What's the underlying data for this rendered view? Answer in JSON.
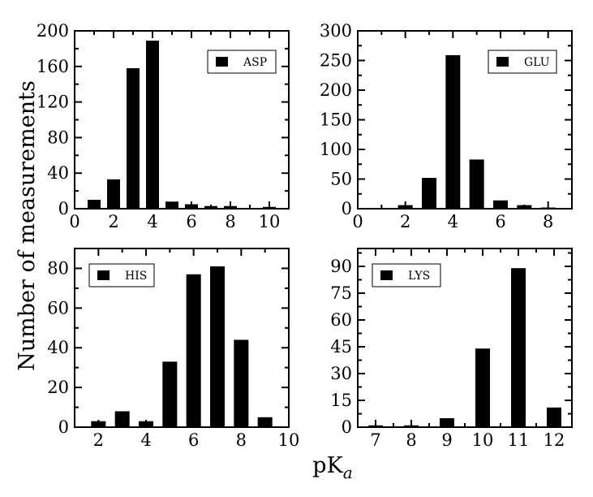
{
  "ylabel": "Number of measurements",
  "xlabel_main": "pK",
  "xlabel_sub": "a",
  "chart_data": [
    {
      "type": "bar",
      "series": [
        {
          "name": "ASP",
          "x": [
            1,
            2,
            3,
            4,
            5,
            6,
            7,
            8,
            10
          ],
          "values": [
            10,
            33,
            158,
            189,
            8,
            5,
            3,
            3,
            2
          ]
        }
      ],
      "xlim": [
        0,
        11
      ],
      "ylim": [
        0,
        200
      ],
      "xticks": [
        "0",
        "2",
        "4",
        "6",
        "8",
        "10"
      ],
      "xtick_values": [
        0,
        2,
        4,
        6,
        8,
        10
      ],
      "yticks": [
        "0",
        "40",
        "80",
        "120",
        "160",
        "200"
      ],
      "ytick_values": [
        0,
        40,
        80,
        120,
        160,
        200
      ],
      "legend": "top-right"
    },
    {
      "type": "bar",
      "series": [
        {
          "name": "GLU",
          "x": [
            2,
            3,
            4,
            5,
            6,
            7,
            8
          ],
          "values": [
            6,
            52,
            259,
            83,
            14,
            6,
            2
          ]
        }
      ],
      "xlim": [
        0,
        9
      ],
      "ylim": [
        0,
        300
      ],
      "xticks": [
        "0",
        "2",
        "4",
        "6",
        "8"
      ],
      "xtick_values": [
        0,
        2,
        4,
        6,
        8
      ],
      "yticks": [
        "0",
        "50",
        "100",
        "150",
        "200",
        "250",
        "300"
      ],
      "ytick_values": [
        0,
        50,
        100,
        150,
        200,
        250,
        300
      ],
      "legend": "top-right"
    },
    {
      "type": "bar",
      "series": [
        {
          "name": "HIS",
          "x": [
            2,
            3,
            4,
            5,
            6,
            7,
            8,
            9
          ],
          "values": [
            3,
            8,
            3,
            33,
            77,
            81,
            44,
            5
          ]
        }
      ],
      "xlim": [
        1,
        10
      ],
      "ylim": [
        0,
        90
      ],
      "xticks": [
        "2",
        "4",
        "6",
        "8",
        "10"
      ],
      "xtick_values": [
        2,
        4,
        6,
        8,
        10
      ],
      "yticks": [
        "0",
        "20",
        "40",
        "60",
        "80"
      ],
      "ytick_values": [
        0,
        20,
        40,
        60,
        80
      ],
      "legend": "top-left"
    },
    {
      "type": "bar",
      "series": [
        {
          "name": "LYS",
          "x": [
            7,
            8,
            9,
            10,
            11,
            12
          ],
          "values": [
            1,
            1,
            5,
            44,
            89,
            11
          ]
        }
      ],
      "xlim": [
        6.5,
        12.5
      ],
      "ylim": [
        0,
        100
      ],
      "xticks": [
        "7",
        "8",
        "9",
        "10",
        "11",
        "12"
      ],
      "xtick_values": [
        7,
        8,
        9,
        10,
        11,
        12
      ],
      "yticks": [
        "0",
        "15",
        "30",
        "45",
        "60",
        "75",
        "90"
      ],
      "ytick_values": [
        0,
        15,
        30,
        45,
        60,
        75,
        90
      ],
      "legend": "top-left"
    }
  ]
}
